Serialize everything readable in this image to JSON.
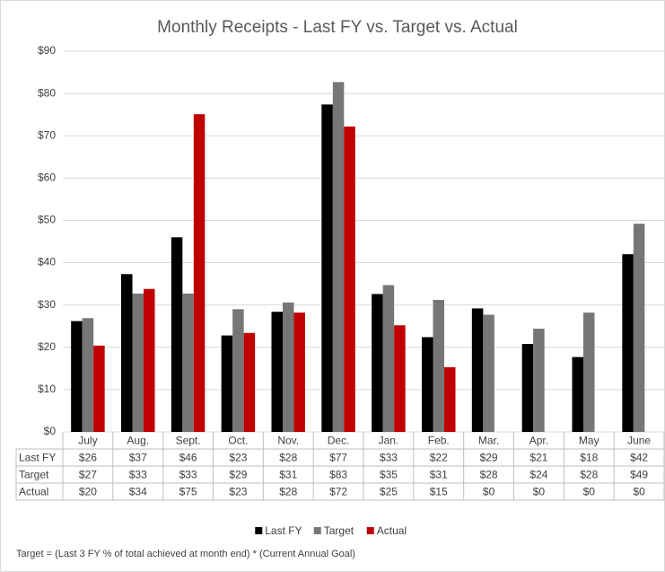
{
  "chart_data": {
    "type": "bar",
    "title": "Monthly Receipts -  Last FY vs. Target vs. Actual",
    "categories": [
      "July",
      "Aug.",
      "Sept.",
      "Oct.",
      "Nov.",
      "Dec.",
      "Jan.",
      "Feb.",
      "Mar.",
      "Apr.",
      "May",
      "June"
    ],
    "series": [
      {
        "name": "Last FY",
        "color": "#000000",
        "values": [
          26.2,
          37.3,
          46.0,
          22.8,
          28.4,
          77.4,
          32.6,
          22.4,
          29.2,
          20.8,
          17.7,
          42.0
        ],
        "value_labels": [
          "$26",
          "$37",
          "$46",
          "$23",
          "$28",
          "$77",
          "$33",
          "$22",
          "$29",
          "$21",
          "$18",
          "$42"
        ]
      },
      {
        "name": "Target",
        "color": "#767676",
        "values": [
          26.9,
          32.7,
          32.7,
          29.0,
          30.6,
          82.7,
          34.7,
          31.2,
          27.7,
          24.4,
          28.2,
          49.2
        ],
        "value_labels": [
          "$27",
          "$33",
          "$33",
          "$29",
          "$31",
          "$83",
          "$35",
          "$31",
          "$28",
          "$24",
          "$28",
          "$49"
        ]
      },
      {
        "name": "Actual",
        "color": "#c00000",
        "values": [
          20.4,
          33.8,
          75.1,
          23.4,
          28.2,
          72.2,
          25.2,
          15.3,
          0,
          0,
          0,
          0
        ],
        "value_labels": [
          "$20",
          "$34",
          "$75",
          "$23",
          "$28",
          "$72",
          "$25",
          "$15",
          "$0",
          "$0",
          "$0",
          "$0"
        ]
      }
    ],
    "ylim": [
      0,
      90
    ],
    "yticks": [
      {
        "value": 0,
        "label": "$0"
      },
      {
        "value": 10,
        "label": "$10"
      },
      {
        "value": 20,
        "label": "$20"
      },
      {
        "value": 30,
        "label": "$30"
      },
      {
        "value": 40,
        "label": "$40"
      },
      {
        "value": 50,
        "label": "$50"
      },
      {
        "value": 60,
        "label": "$60"
      },
      {
        "value": 70,
        "label": "$70"
      },
      {
        "value": 80,
        "label": "$80"
      },
      {
        "value": 90,
        "label": "$90"
      }
    ],
    "grid": true,
    "legend": "bottom",
    "note": "Target = (Last 3 FY % of total achieved at month end) * (Current Annual Goal)"
  }
}
